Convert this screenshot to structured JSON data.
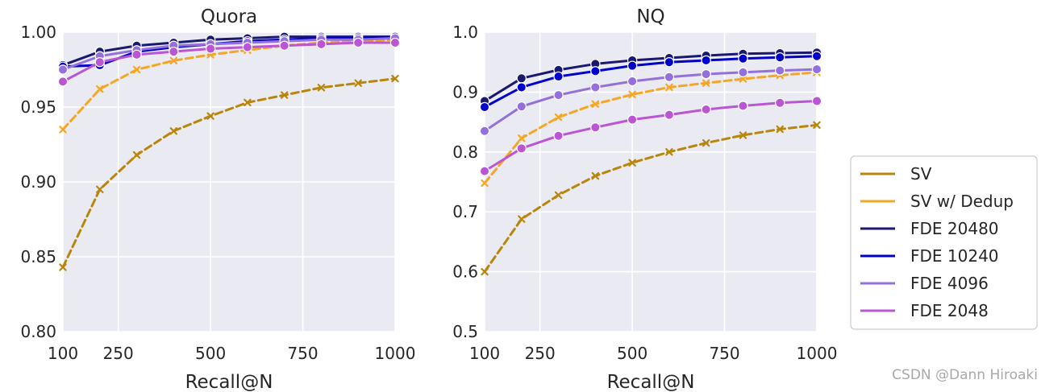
{
  "legend": {
    "entries": [
      {
        "label": "SV",
        "color": "#b8860b"
      },
      {
        "label": "SV w/ Dedup",
        "color": "#f5a623"
      },
      {
        "label": "FDE 20480",
        "color": "#191970"
      },
      {
        "label": "FDE 10240",
        "color": "#0000cd"
      },
      {
        "label": "FDE 4096",
        "color": "#9370db"
      },
      {
        "label": "FDE 2048",
        "color": "#ba55d3"
      }
    ]
  },
  "watermark": "CSDN @Dann Hiroaki",
  "chart_data": [
    {
      "type": "line",
      "title": "Quora",
      "xlabel": "Recall@N",
      "ylabel": "",
      "xlim": [
        100,
        1000
      ],
      "ylim": [
        0.8,
        1.0
      ],
      "xticks": [
        100,
        250,
        500,
        750,
        1000
      ],
      "yticks": [
        0.8,
        0.85,
        0.9,
        0.95,
        1.0
      ],
      "ytick_labels": [
        "0.80",
        "0.85",
        "0.90",
        "0.95",
        "1.00"
      ],
      "x": [
        100,
        200,
        300,
        400,
        500,
        600,
        700,
        800,
        900,
        1000
      ],
      "series": [
        {
          "name": "SV",
          "color": "#b8860b",
          "style": "dashed",
          "marker": "x",
          "values": [
            0.843,
            0.895,
            0.918,
            0.934,
            0.944,
            0.953,
            0.958,
            0.963,
            0.966,
            0.969
          ]
        },
        {
          "name": "SV w/ Dedup",
          "color": "#f5a623",
          "style": "dashed",
          "marker": "x",
          "values": [
            0.935,
            0.962,
            0.975,
            0.981,
            0.985,
            0.988,
            0.991,
            0.993,
            0.994,
            0.995
          ]
        },
        {
          "name": "FDE 20480",
          "color": "#191970",
          "style": "solid",
          "marker": "o",
          "values": [
            0.978,
            0.987,
            0.991,
            0.993,
            0.995,
            0.996,
            0.997,
            0.997,
            0.997,
            0.997
          ]
        },
        {
          "name": "FDE 10240",
          "color": "#0000cd",
          "style": "solid",
          "marker": "o",
          "values": [
            0.977,
            0.978,
            0.987,
            0.99,
            0.992,
            0.994,
            0.995,
            0.996,
            0.996,
            0.997
          ]
        },
        {
          "name": "FDE 4096",
          "color": "#9370db",
          "style": "solid",
          "marker": "o",
          "values": [
            0.975,
            0.984,
            0.988,
            0.991,
            0.992,
            0.993,
            0.994,
            0.995,
            0.995,
            0.996
          ]
        },
        {
          "name": "FDE 2048",
          "color": "#ba55d3",
          "style": "solid",
          "marker": "o",
          "values": [
            0.967,
            0.98,
            0.985,
            0.987,
            0.989,
            0.99,
            0.991,
            0.992,
            0.993,
            0.993
          ]
        }
      ]
    },
    {
      "type": "line",
      "title": "NQ",
      "xlabel": "Recall@N",
      "ylabel": "",
      "xlim": [
        100,
        1000
      ],
      "ylim": [
        0.5,
        1.0
      ],
      "xticks": [
        100,
        250,
        500,
        750,
        1000
      ],
      "yticks": [
        0.5,
        0.6,
        0.7,
        0.8,
        0.9,
        1.0
      ],
      "ytick_labels": [
        "0.5",
        "0.6",
        "0.7",
        "0.8",
        "0.9",
        "1.0"
      ],
      "x": [
        100,
        200,
        300,
        400,
        500,
        600,
        700,
        800,
        900,
        1000
      ],
      "series": [
        {
          "name": "SV",
          "color": "#b8860b",
          "style": "dashed",
          "marker": "x",
          "values": [
            0.6,
            0.688,
            0.728,
            0.76,
            0.782,
            0.8,
            0.815,
            0.828,
            0.838,
            0.845
          ]
        },
        {
          "name": "SV w/ Dedup",
          "color": "#f5a623",
          "style": "dashed",
          "marker": "x",
          "values": [
            0.748,
            0.823,
            0.858,
            0.88,
            0.896,
            0.908,
            0.915,
            0.922,
            0.928,
            0.933
          ]
        },
        {
          "name": "FDE 20480",
          "color": "#191970",
          "style": "solid",
          "marker": "o",
          "values": [
            0.885,
            0.923,
            0.937,
            0.947,
            0.953,
            0.957,
            0.961,
            0.964,
            0.965,
            0.966
          ]
        },
        {
          "name": "FDE 10240",
          "color": "#0000cd",
          "style": "solid",
          "marker": "o",
          "values": [
            0.875,
            0.908,
            0.926,
            0.935,
            0.944,
            0.95,
            0.953,
            0.956,
            0.958,
            0.96
          ]
        },
        {
          "name": "FDE 4096",
          "color": "#9370db",
          "style": "solid",
          "marker": "o",
          "values": [
            0.835,
            0.876,
            0.895,
            0.908,
            0.918,
            0.925,
            0.93,
            0.933,
            0.936,
            0.938
          ]
        },
        {
          "name": "FDE 2048",
          "color": "#ba55d3",
          "style": "solid",
          "marker": "o",
          "values": [
            0.768,
            0.806,
            0.827,
            0.841,
            0.854,
            0.862,
            0.871,
            0.877,
            0.882,
            0.885
          ]
        }
      ]
    }
  ]
}
